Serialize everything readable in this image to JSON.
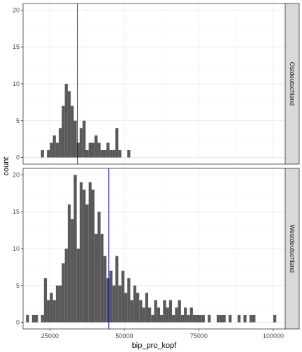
{
  "chart_data": {
    "type": "bar",
    "subtype": "faceted-histogram",
    "title": "",
    "xlabel": "bip_pro_kopf",
    "ylabel": "count",
    "xlim": [
      16000,
      104000
    ],
    "ylim": [
      -0.9,
      20.9
    ],
    "x_ticks": [
      25000,
      50000,
      75000,
      100000
    ],
    "x_tick_labels": [
      "25000",
      "50000",
      "75000",
      "100000"
    ],
    "y_ticks": [
      0,
      5,
      10,
      15,
      20
    ],
    "y_tick_labels": [
      "0",
      "5",
      "10",
      "15",
      "20"
    ],
    "bin_width": 1000,
    "grid": true,
    "bar_color": "#595959",
    "vline_color": "#0000cc",
    "panels": [
      {
        "label": "Ostdeutschland",
        "vline": 34200,
        "bins": [
          [
            22500,
            1
          ],
          [
            24500,
            1
          ],
          [
            25500,
            2
          ],
          [
            26500,
            3
          ],
          [
            27500,
            2
          ],
          [
            28500,
            4
          ],
          [
            29500,
            7
          ],
          [
            30500,
            10
          ],
          [
            31500,
            9
          ],
          [
            32500,
            7
          ],
          [
            33500,
            5
          ],
          [
            34500,
            2
          ],
          [
            35500,
            4
          ],
          [
            36500,
            5
          ],
          [
            37500,
            1
          ],
          [
            38500,
            2
          ],
          [
            39500,
            2
          ],
          [
            40500,
            3
          ],
          [
            41500,
            2
          ],
          [
            42500,
            1
          ],
          [
            43500,
            1
          ],
          [
            44500,
            2
          ],
          [
            45500,
            1
          ],
          [
            46500,
            1
          ],
          [
            47500,
            4
          ],
          [
            48500,
            1
          ],
          [
            51500,
            1
          ]
        ]
      },
      {
        "label": "Westdeutschland",
        "vline": 44800,
        "bins": [
          [
            17500,
            1
          ],
          [
            19500,
            1
          ],
          [
            20500,
            1
          ],
          [
            22500,
            1
          ],
          [
            23500,
            6
          ],
          [
            24500,
            3
          ],
          [
            25500,
            4
          ],
          [
            26500,
            3
          ],
          [
            27500,
            5
          ],
          [
            28500,
            5
          ],
          [
            29500,
            8
          ],
          [
            30500,
            10
          ],
          [
            31500,
            16
          ],
          [
            32500,
            14
          ],
          [
            33500,
            20
          ],
          [
            34500,
            10
          ],
          [
            35500,
            19
          ],
          [
            36500,
            18
          ],
          [
            37500,
            16
          ],
          [
            38500,
            19
          ],
          [
            39500,
            18
          ],
          [
            40500,
            12
          ],
          [
            41500,
            15
          ],
          [
            42500,
            12
          ],
          [
            43500,
            9
          ],
          [
            44500,
            6
          ],
          [
            45500,
            7
          ],
          [
            46500,
            5
          ],
          [
            47500,
            9
          ],
          [
            48500,
            5
          ],
          [
            49500,
            7
          ],
          [
            50500,
            4
          ],
          [
            51500,
            6
          ],
          [
            52500,
            3
          ],
          [
            53500,
            5
          ],
          [
            54500,
            4
          ],
          [
            55500,
            3
          ],
          [
            56500,
            2
          ],
          [
            57500,
            4
          ],
          [
            58500,
            2
          ],
          [
            59500,
            1
          ],
          [
            60500,
            3
          ],
          [
            61500,
            2
          ],
          [
            62500,
            1
          ],
          [
            63500,
            3
          ],
          [
            64500,
            2
          ],
          [
            65500,
            3
          ],
          [
            66500,
            1
          ],
          [
            67500,
            2
          ],
          [
            68500,
            3
          ],
          [
            69500,
            1
          ],
          [
            70500,
            2
          ],
          [
            71500,
            1
          ],
          [
            72500,
            2
          ],
          [
            73500,
            1
          ],
          [
            74500,
            1
          ],
          [
            75500,
            1
          ],
          [
            76500,
            1
          ],
          [
            78500,
            1
          ],
          [
            81500,
            1
          ],
          [
            82500,
            1
          ],
          [
            83500,
            1
          ],
          [
            85500,
            1
          ],
          [
            88500,
            1
          ],
          [
            90500,
            1
          ],
          [
            92500,
            1
          ],
          [
            93500,
            1
          ],
          [
            100500,
            1
          ]
        ]
      }
    ]
  }
}
